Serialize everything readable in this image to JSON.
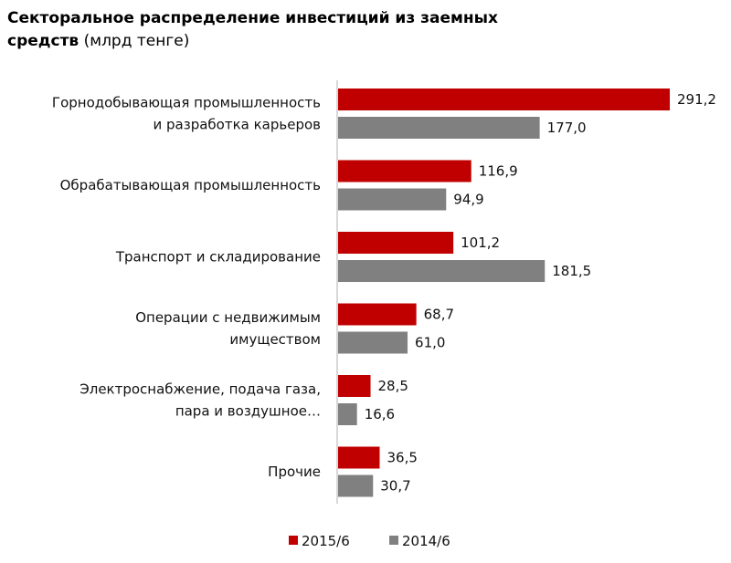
{
  "chart_data": {
    "type": "bar",
    "orientation": "horizontal",
    "title": "Секторальное распределение инвестиций из заемных средств",
    "unit": "(млрд тенге)",
    "categories": [
      [
        "Горнодобывающая промышленность",
        "и разработка карьеров"
      ],
      [
        "Обрабатывающая промышленность"
      ],
      [
        "Транспорт и складирование"
      ],
      [
        "Операции с недвижимым",
        "имуществом"
      ],
      [
        "Электроснабжение, подача газа,",
        "пара и воздушное…"
      ],
      [
        "Прочие"
      ]
    ],
    "series": [
      {
        "name": "2015/6",
        "color": "#c00000",
        "values": [
          291.2,
          116.9,
          101.2,
          68.7,
          28.5,
          36.5
        ],
        "labels": [
          "291,2",
          "116,9",
          "101,2",
          "68,7",
          "28,5",
          "36,5"
        ]
      },
      {
        "name": "2014/6",
        "color": "#808080",
        "values": [
          177.0,
          94.9,
          181.5,
          61.0,
          16.6,
          30.7
        ],
        "labels": [
          "177,0",
          "94,9",
          "181,5",
          "61,0",
          "16,6",
          "30,7"
        ]
      }
    ],
    "xlim": [
      0,
      291.2
    ],
    "grid": false,
    "legend_position": "bottom"
  }
}
